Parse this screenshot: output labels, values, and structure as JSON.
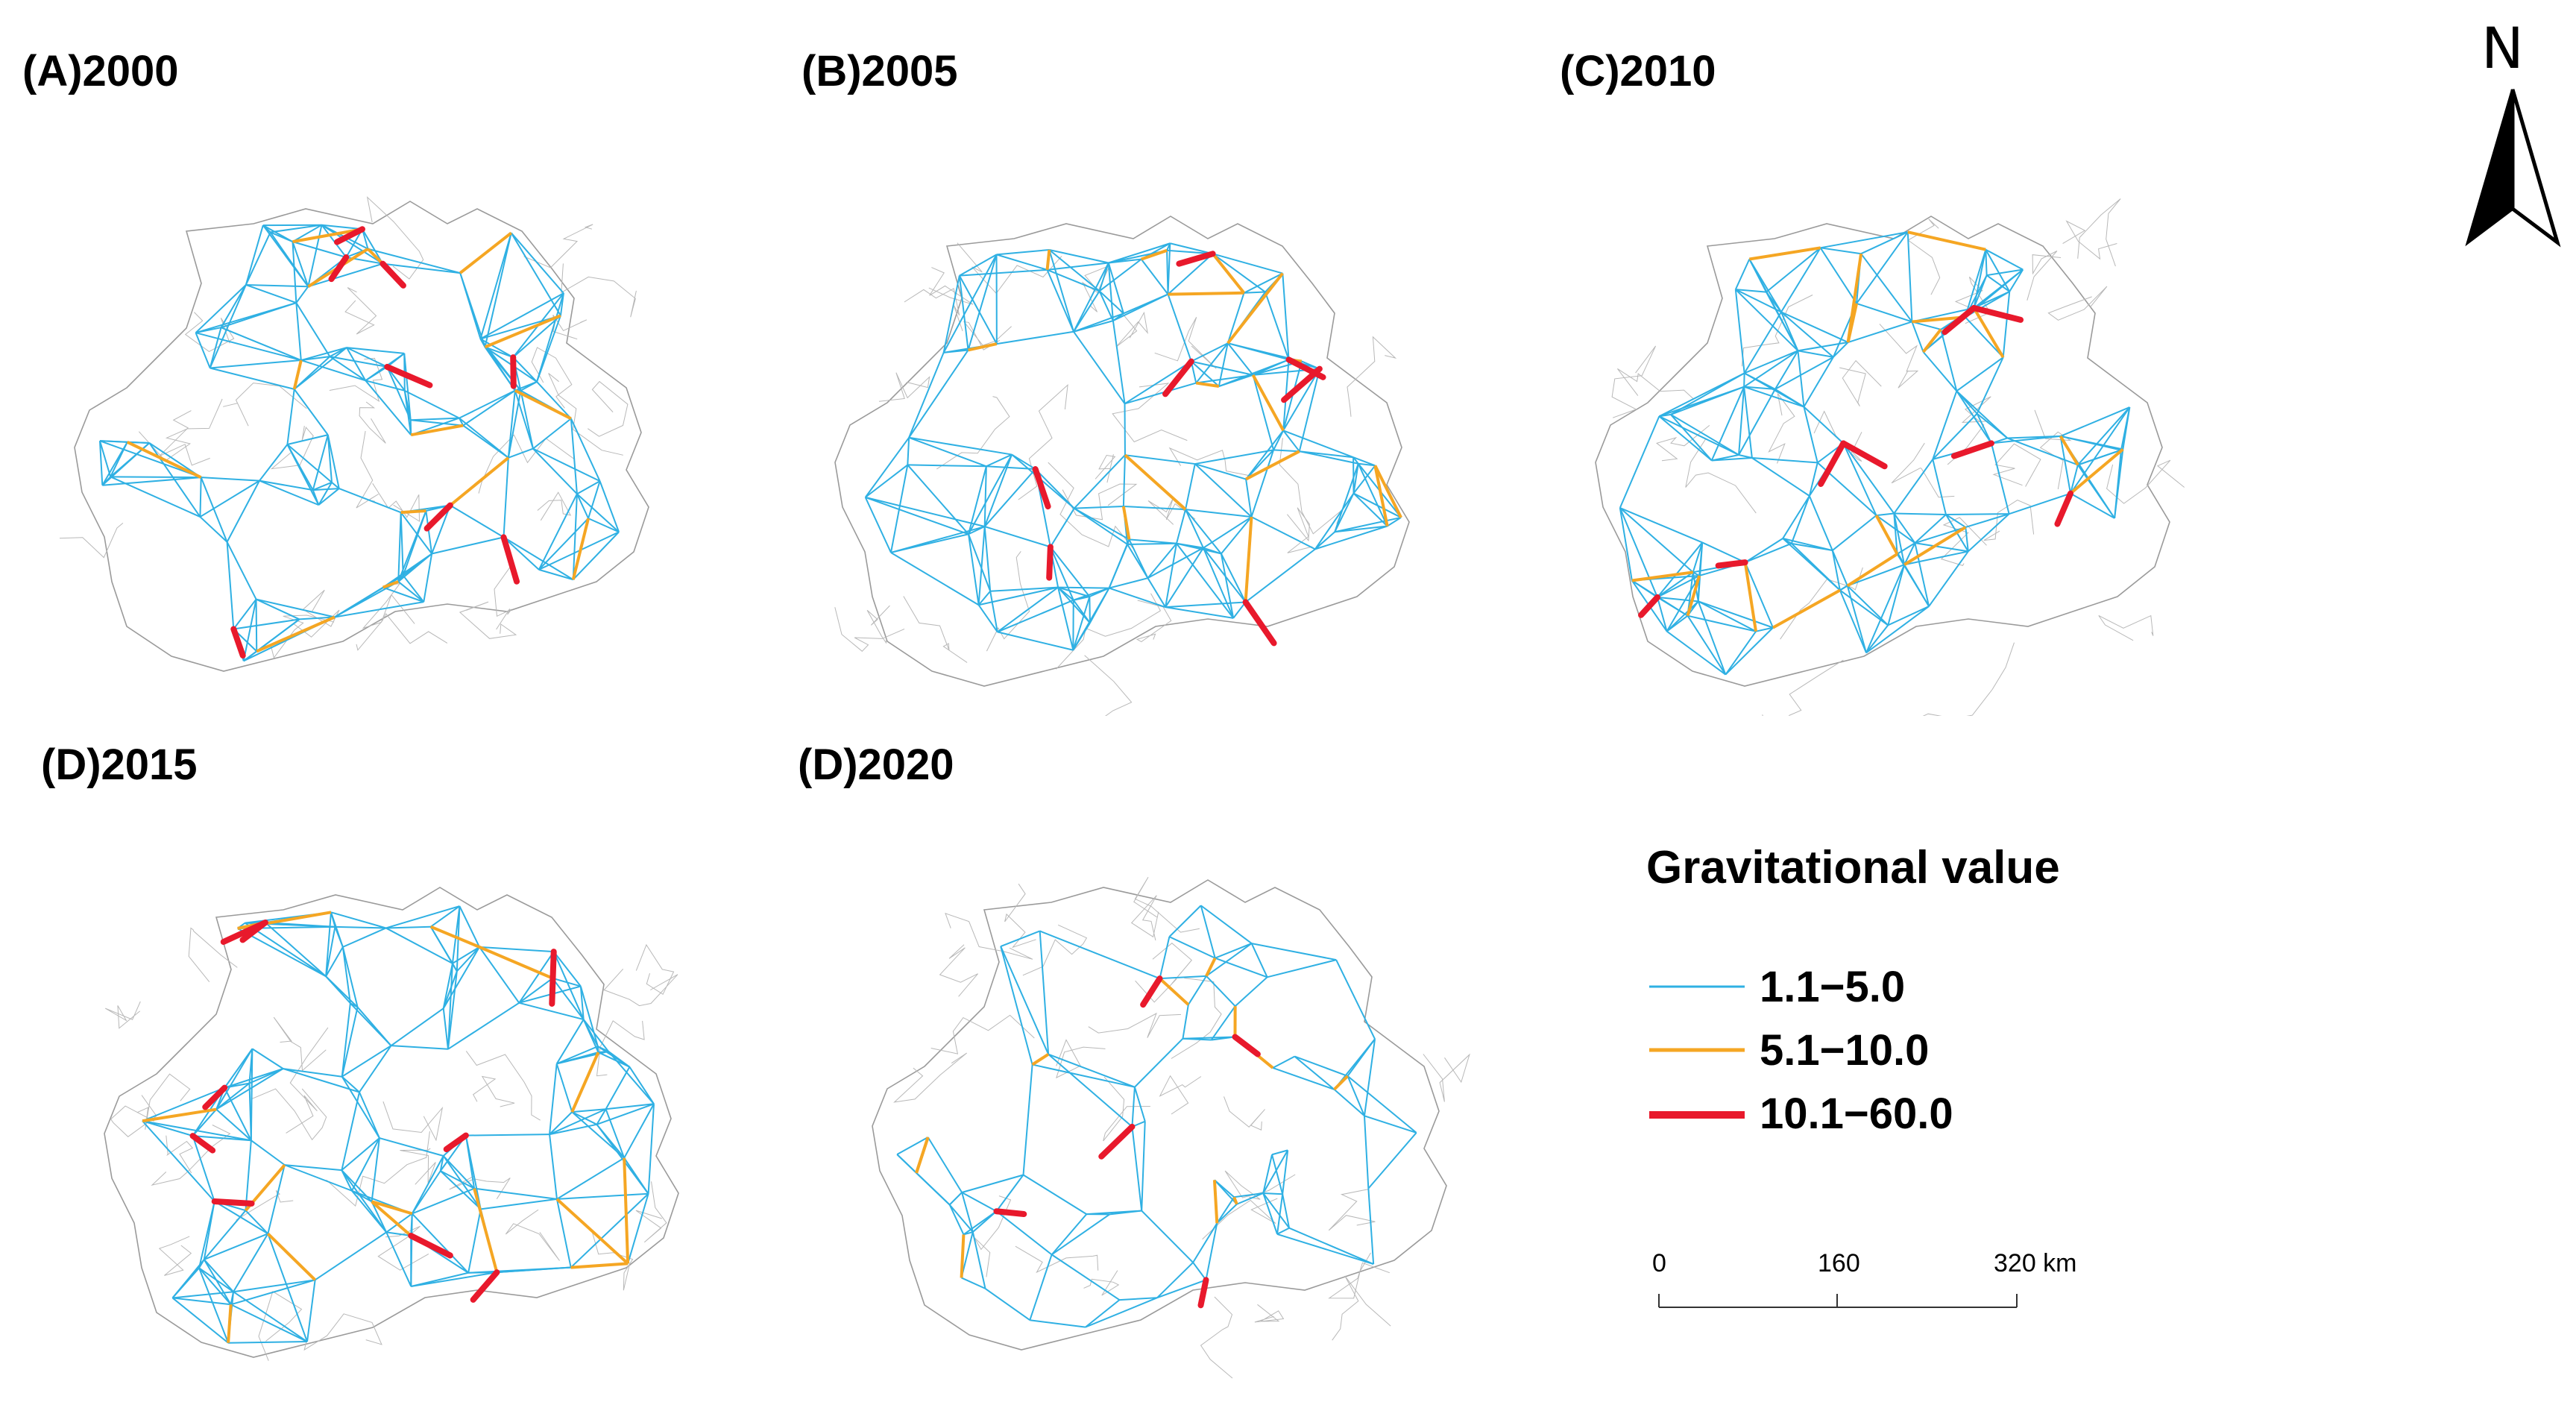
{
  "panels": [
    {
      "id": "A",
      "label": "(A)2000",
      "seed": 11,
      "blue_count": 230,
      "orange_count": 14,
      "red_count": 8,
      "variant": "full"
    },
    {
      "id": "B",
      "label": "(B)2005",
      "seed": 23,
      "blue_count": 230,
      "orange_count": 15,
      "red_count": 7,
      "variant": "full"
    },
    {
      "id": "C",
      "label": "(C)2010",
      "seed": 37,
      "blue_count": 240,
      "orange_count": 16,
      "red_count": 8,
      "variant": "full"
    },
    {
      "id": "D1",
      "label": "(D)2015",
      "seed": 41,
      "blue_count": 245,
      "orange_count": 16,
      "red_count": 9,
      "variant": "full"
    },
    {
      "id": "D2",
      "label": "(D)2020",
      "seed": 53,
      "blue_count": 150,
      "orange_count": 11,
      "red_count": 5,
      "variant": "sparse"
    }
  ],
  "legend": {
    "title": "Gravitational value",
    "items": [
      {
        "label": "1.1−5.0",
        "color": "#2fb0e3",
        "class": "low"
      },
      {
        "label": "5.1−10.0",
        "color": "#f5a623",
        "class": "mid"
      },
      {
        "label": "10.1−60.0",
        "color": "#e8192c",
        "class": "high"
      }
    ]
  },
  "north_arrow": {
    "label": "N"
  },
  "scale_bar": {
    "ticks": [
      "0",
      "160",
      "320 km"
    ]
  },
  "colors": {
    "boundary": "#9a9a9a",
    "low": "#2fb0e3",
    "mid": "#f5a623",
    "high": "#e8192c"
  }
}
